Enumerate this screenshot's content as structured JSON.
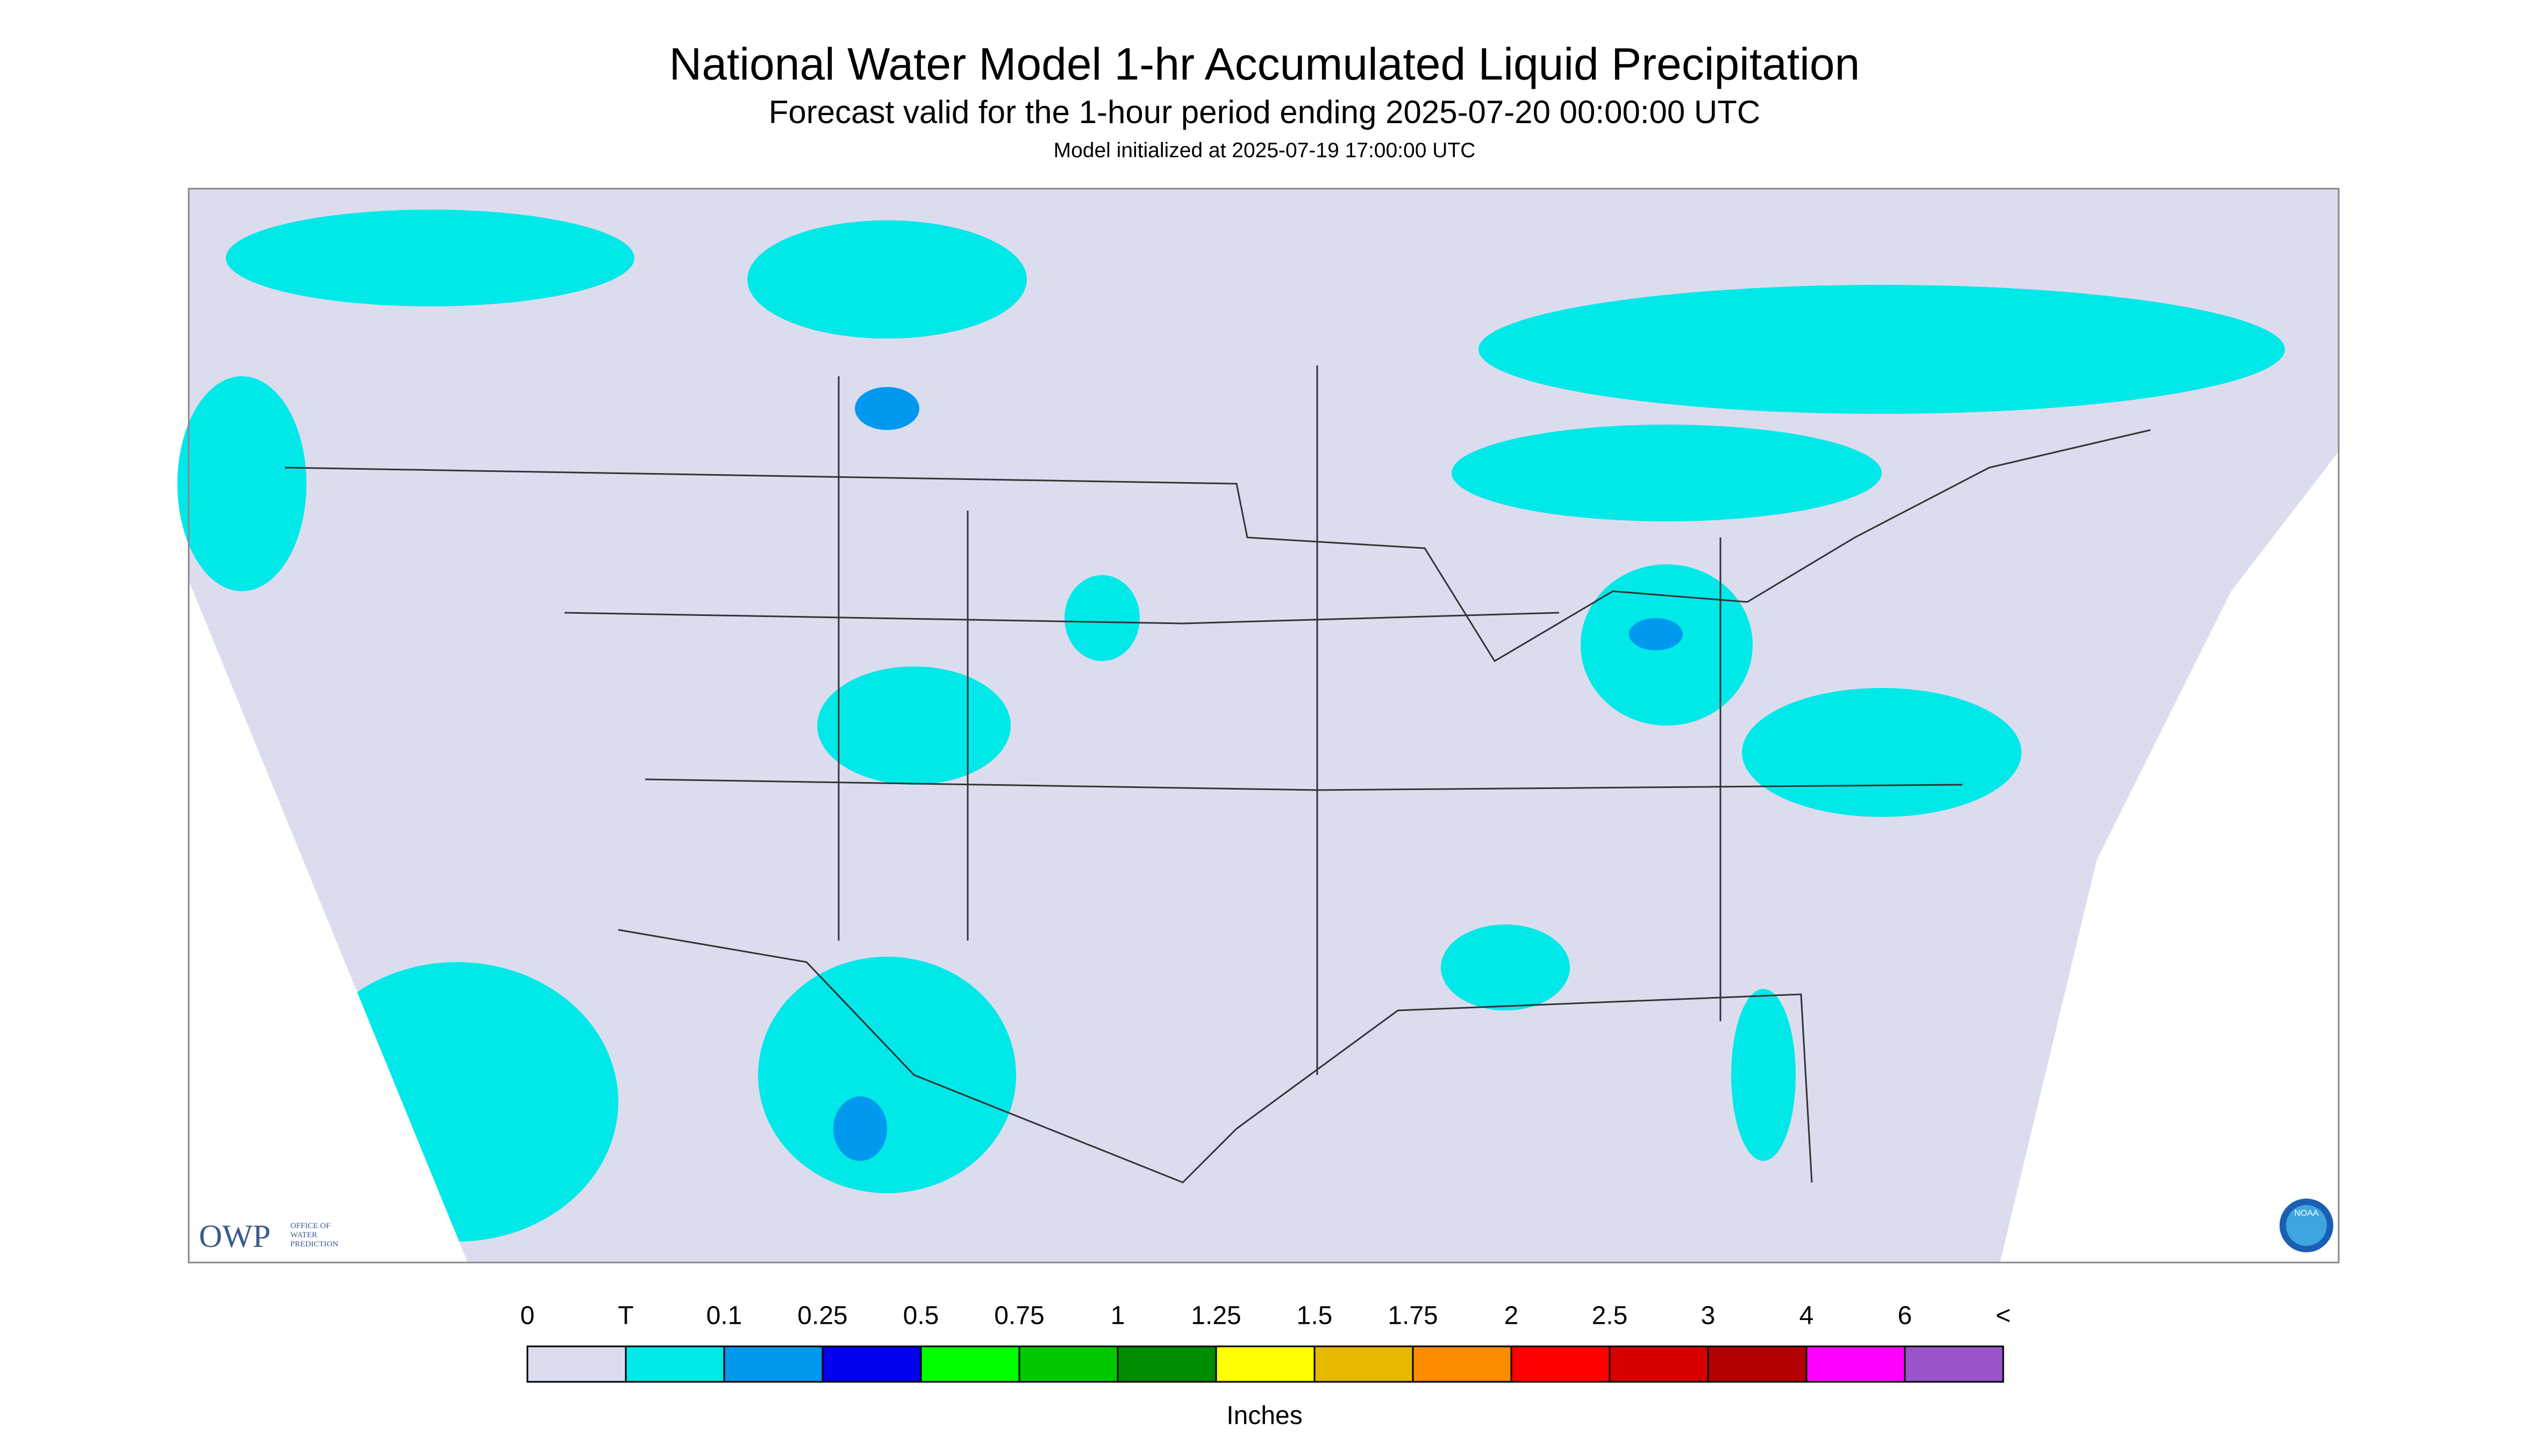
{
  "header": {
    "title": "National Water Model 1-hr Accumulated Liquid Precipitation",
    "subtitle": "Forecast valid for the 1-hour period ending 2025-07-20 00:00:00 UTC",
    "initialized": "Model initialized at 2025-07-19 17:00:00 UTC"
  },
  "logo": {
    "owp": "OWP",
    "owp_line1": "OFFICE OF",
    "owp_line2": "WATER",
    "owp_line3": "PREDICTION",
    "noaa": "NOAA"
  },
  "legend": {
    "unit": "Inches",
    "labels": [
      "0",
      "T",
      "0.1",
      "0.25",
      "0.5",
      "0.75",
      "1",
      "1.25",
      "1.5",
      "1.75",
      "2",
      "2.5",
      "3",
      "4",
      "6",
      "<"
    ],
    "colors": [
      "#dcdcef",
      "#00e8e8",
      "#0099ee",
      "#0000ee",
      "#00ff00",
      "#00c800",
      "#008c00",
      "#ffff00",
      "#e6b800",
      "#ff8c00",
      "#ff0000",
      "#d80000",
      "#b40000",
      "#ff00ff",
      "#9955c9"
    ]
  }
}
